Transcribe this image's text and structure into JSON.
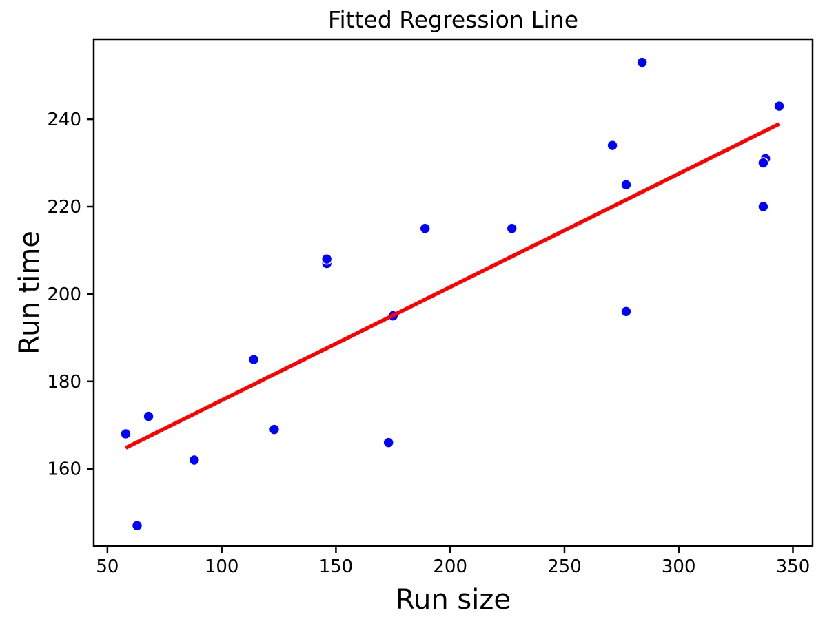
{
  "figure": {
    "title": "Fitted Regression Line",
    "xlabel": "Run size",
    "ylabel": "Run time"
  },
  "chart_data": {
    "type": "scatter",
    "title": "Fitted Regression Line",
    "xlabel": "Run size",
    "ylabel": "Run time",
    "xlim": [
      44.0,
      358.6
    ],
    "ylim": [
      142.3,
      258.3
    ],
    "x_ticks": [
      50,
      100,
      150,
      200,
      250,
      300,
      350
    ],
    "y_ticks": [
      160,
      180,
      200,
      220,
      240
    ],
    "grid": false,
    "legend_position": "none",
    "series": [
      {
        "name": "observations",
        "type": "scatter",
        "color": "#0000ff",
        "marker_edge_color": "#ffffff",
        "points": [
          [
            175,
            195
          ],
          [
            189,
            215
          ],
          [
            344,
            243
          ],
          [
            88,
            162
          ],
          [
            114,
            185
          ],
          [
            338,
            231
          ],
          [
            271,
            234
          ],
          [
            173,
            166
          ],
          [
            284,
            253
          ],
          [
            277,
            196
          ],
          [
            337,
            220
          ],
          [
            58,
            168
          ],
          [
            146,
            207
          ],
          [
            277,
            225
          ],
          [
            123,
            169
          ],
          [
            227,
            215
          ],
          [
            63,
            147
          ],
          [
            337,
            230
          ],
          [
            146,
            208
          ],
          [
            68,
            172
          ]
        ]
      },
      {
        "name": "fitted-line",
        "type": "line",
        "color": "#ff0000",
        "intercept": 149.7477,
        "slope": 0.25924,
        "x_start": 58,
        "x_end": 344
      }
    ]
  },
  "colors": {
    "point": "#0000ff",
    "point_edge": "#ffffff",
    "regression_line": "#ff0000",
    "axis": "#000000",
    "background": "#ffffff"
  }
}
